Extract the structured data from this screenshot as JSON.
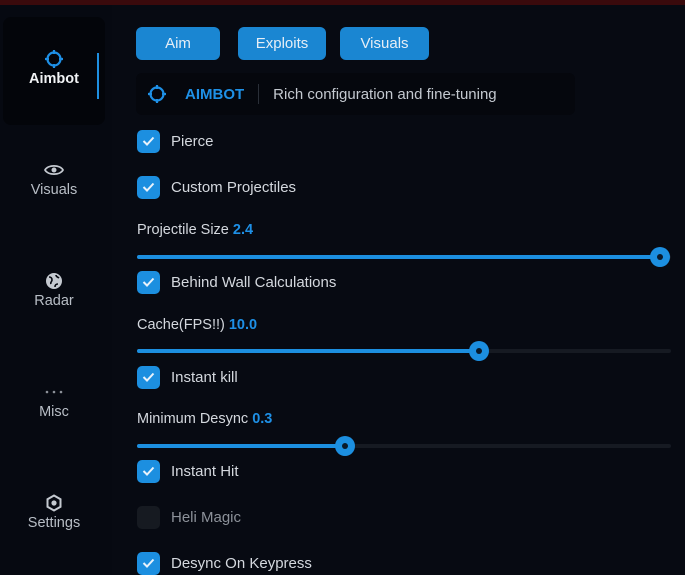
{
  "colors": {
    "accent": "#1c8fe0",
    "background": "#070a12"
  },
  "sidebar": {
    "items": [
      {
        "label": "Aimbot",
        "icon": "crosshair-icon",
        "active": true
      },
      {
        "label": "Visuals",
        "icon": "eye-icon"
      },
      {
        "label": "Radar",
        "icon": "globe-icon"
      },
      {
        "label": "Misc",
        "icon": "more-dots-icon"
      },
      {
        "label": "Settings",
        "icon": "gear-icon"
      }
    ]
  },
  "tabs": [
    {
      "label": "Aim"
    },
    {
      "label": "Exploits"
    },
    {
      "label": "Visuals"
    }
  ],
  "header": {
    "title": "AIMBOT",
    "subtitle": "Rich configuration and fine-tuning",
    "icon": "crosshair-icon"
  },
  "options": {
    "pierce": {
      "label": "Pierce",
      "checked": true
    },
    "custom_projectiles": {
      "label": "Custom Projectiles",
      "checked": true
    },
    "projectile_size": {
      "label": "Projectile Size",
      "value": "2.4",
      "fill_percent": 98
    },
    "behind_wall": {
      "label": "Behind Wall Calculations",
      "checked": true
    },
    "cache": {
      "label": "Cache(FPS!!)",
      "value": "10.0",
      "fill_percent": 64
    },
    "instant_kill": {
      "label": "Instant kill",
      "checked": true
    },
    "min_desync": {
      "label": "Minimum Desync",
      "value": "0.3",
      "fill_percent": 39
    },
    "instant_hit": {
      "label": "Instant Hit",
      "checked": true
    },
    "heli_magic": {
      "label": "Heli Magic",
      "checked": false
    },
    "desync_keypress": {
      "label": "Desync On Keypress",
      "checked": true
    }
  }
}
